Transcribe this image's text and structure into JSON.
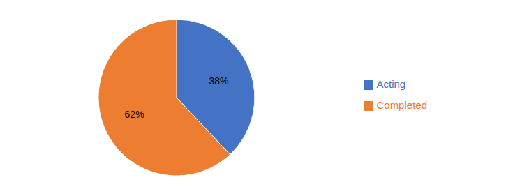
{
  "chart_data": {
    "type": "pie",
    "categories": [
      "Acting",
      "Completed"
    ],
    "values": [
      38,
      62
    ],
    "value_labels": [
      "38%",
      "62%"
    ],
    "colors": [
      "#4472C4",
      "#ED7D31"
    ],
    "data_labels": true,
    "legend": "right"
  }
}
